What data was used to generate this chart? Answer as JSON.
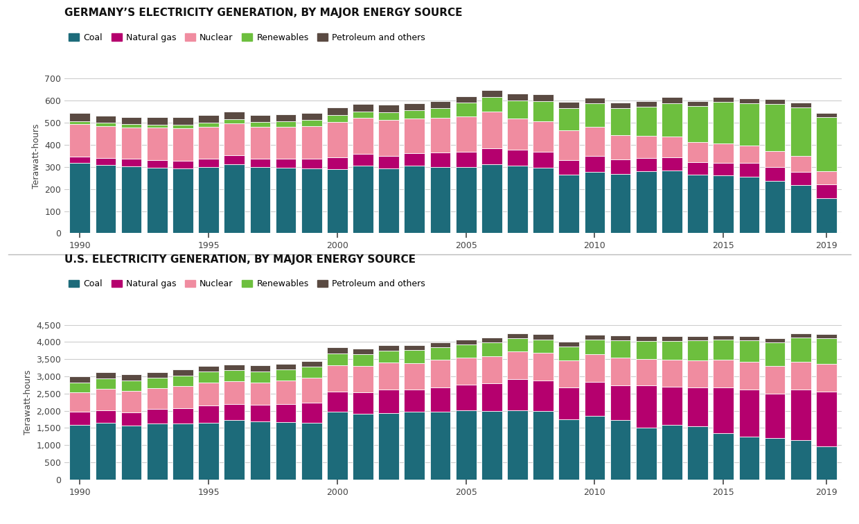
{
  "title_germany": "GERMANY’S ELECTRICITY GENERATION, BY MAJOR ENERGY SOURCE",
  "title_us": "U.S. ELECTRICITY GENERATION, BY MAJOR ENERGY SOURCE",
  "ylabel": "Terawatt-hours",
  "colors": {
    "Coal": "#1d6b7a",
    "Natural gas": "#b5006e",
    "Nuclear": "#f08ca0",
    "Renewables": "#6dbf3e",
    "Petroleum and others": "#5a4a42"
  },
  "legend_labels": [
    "Coal",
    "Natural gas",
    "Nuclear",
    "Renewables",
    "Petroleum and others"
  ],
  "years": [
    1990,
    1991,
    1992,
    1993,
    1994,
    1995,
    1996,
    1997,
    1998,
    1999,
    2000,
    2001,
    2002,
    2003,
    2004,
    2005,
    2006,
    2007,
    2008,
    2009,
    2010,
    2011,
    2012,
    2013,
    2014,
    2015,
    2016,
    2017,
    2018,
    2019
  ],
  "germany": {
    "Coal": [
      318,
      308,
      302,
      295,
      292,
      300,
      313,
      298,
      295,
      293,
      291,
      305,
      294,
      305,
      301,
      301,
      312,
      305,
      295,
      265,
      277,
      267,
      280,
      285,
      264,
      262,
      257,
      236,
      217,
      157
    ],
    "Natural gas": [
      30,
      33,
      35,
      37,
      37,
      37,
      40,
      40,
      42,
      43,
      52,
      54,
      57,
      56,
      64,
      66,
      71,
      72,
      72,
      67,
      72,
      68,
      61,
      60,
      57,
      57,
      60,
      65,
      62,
      65
    ],
    "Nuclear": [
      145,
      145,
      141,
      145,
      145,
      145,
      145,
      145,
      145,
      150,
      160,
      163,
      162,
      157,
      157,
      163,
      167,
      141,
      141,
      134,
      133,
      108,
      99,
      92,
      92,
      87,
      80,
      72,
      72,
      60
    ],
    "Renewables": [
      15,
      14,
      16,
      14,
      18,
      18,
      18,
      21,
      24,
      26,
      32,
      30,
      36,
      38,
      44,
      60,
      66,
      84,
      90,
      100,
      105,
      122,
      132,
      152,
      162,
      187,
      190,
      213,
      219,
      242
    ],
    "Petroleum and others": [
      37,
      33,
      33,
      34,
      33,
      34,
      34,
      32,
      32,
      33,
      33,
      32,
      32,
      32,
      33,
      31,
      31,
      30,
      30,
      28,
      27,
      26,
      26,
      26,
      24,
      23,
      23,
      22,
      21,
      20
    ]
  },
  "us": {
    "Coal": [
      1594,
      1647,
      1575,
      1639,
      1635,
      1652,
      1737,
      1680,
      1672,
      1654,
      1966,
      1904,
      1933,
      1974,
      1978,
      2013,
      1991,
      2016,
      1994,
      1755,
      1847,
      1733,
      1514,
      1581,
      1546,
      1352,
      1239,
      1206,
      1146,
      966
    ],
    "Natural gas": [
      373,
      368,
      380,
      411,
      437,
      497,
      455,
      504,
      530,
      573,
      601,
      640,
      692,
      649,
      710,
      755,
      816,
      897,
      882,
      921,
      987,
      1014,
      1226,
      1124,
      1125,
      1331,
      1381,
      1296,
      1469,
      1586
    ],
    "Nuclear": [
      577,
      613,
      619,
      610,
      641,
      673,
      675,
      628,
      673,
      728,
      754,
      769,
      780,
      764,
      789,
      782,
      787,
      807,
      806,
      799,
      807,
      790,
      769,
      789,
      797,
      797,
      805,
      805,
      807,
      809
    ],
    "Renewables": [
      282,
      306,
      308,
      302,
      311,
      318,
      315,
      336,
      331,
      334,
      355,
      330,
      351,
      376,
      366,
      379,
      393,
      384,
      393,
      399,
      430,
      519,
      519,
      537,
      574,
      584,
      623,
      682,
      712,
      743
    ],
    "Petroleum and others": [
      172,
      180,
      179,
      168,
      170,
      168,
      168,
      169,
      168,
      166,
      166,
      164,
      152,
      145,
      143,
      143,
      143,
      147,
      147,
      141,
      143,
      138,
      139,
      143,
      135,
      135,
      133,
      130,
      128,
      128
    ]
  },
  "germany_ylim": [
    0,
    700
  ],
  "germany_yticks": [
    0,
    100,
    200,
    300,
    400,
    500,
    600,
    700
  ],
  "us_ylim": [
    0,
    4500
  ],
  "us_yticks": [
    0,
    500,
    1000,
    1500,
    2000,
    2500,
    3000,
    3500,
    4000,
    4500
  ],
  "xticks": [
    1990,
    1995,
    2000,
    2005,
    2010,
    2015,
    2019
  ],
  "background_color": "#ffffff",
  "grid_color": "#cccccc",
  "title_fontsize": 11,
  "legend_fontsize": 9,
  "tick_fontsize": 9,
  "ylabel_fontsize": 9
}
